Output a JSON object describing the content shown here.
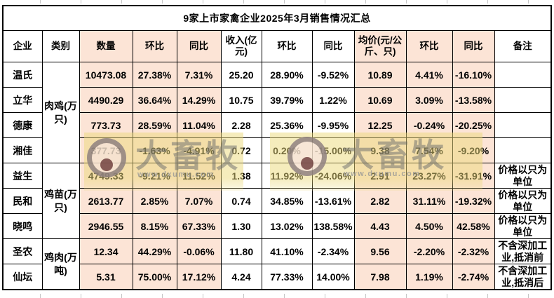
{
  "title": "9家上市家禽企业2025年3月销售情况汇总",
  "header": {
    "columns": [
      "企业",
      "类别",
      "数量",
      "环比",
      "同比",
      "收入(亿元)",
      "环比",
      "同比",
      "均价(元/公斤、只)",
      "环比",
      "同比",
      "备注"
    ]
  },
  "categories": [
    {
      "label": "肉鸡(万只)",
      "span": 4
    },
    {
      "label": "鸡苗(万只)",
      "span": 3
    },
    {
      "label": "鸡肉(万吨)",
      "span": 2
    }
  ],
  "rows": [
    {
      "company": "温氏",
      "qty": "10473.08",
      "qty_mom": "27.38%",
      "qty_yoy": "7.31%",
      "rev": "25.20",
      "rev_mom": "28.90%",
      "rev_yoy": "-9.52%",
      "price": "10.89",
      "price_mom": "4.41%",
      "price_yoy": "-16.10%",
      "note": ""
    },
    {
      "company": "立华",
      "qty": "4490.29",
      "qty_mom": "36.64%",
      "qty_yoy": "14.29%",
      "rev": "10.75",
      "rev_mom": "39.79%",
      "rev_yoy": "1.22%",
      "price": "10.69",
      "price_mom": "3.09%",
      "price_yoy": "-13.58%",
      "note": ""
    },
    {
      "company": "德康",
      "qty": "773.73",
      "qty_mom": "28.59%",
      "qty_yoy": "11.04%",
      "rev": "2.28",
      "rev_mom": "25.36%",
      "rev_yoy": "-9.95%",
      "price": "12.25",
      "price_mom": "-0.24%",
      "price_yoy": "-20.25%",
      "note": ""
    },
    {
      "company": "湘佳",
      "qty": "377.73",
      "qty_mom": "-1.63%",
      "qty_yoy": "-4.91%",
      "rev": "0.72",
      "rev_mom": "0.20%",
      "rev_yoy": "-15.00%",
      "price": "9.38",
      "price_mom": "7.54%",
      "price_yoy": "-9.20%",
      "note": ""
    },
    {
      "company": "益生",
      "qty": "4749.33",
      "qty_mom": "-9.21%",
      "qty_yoy": "11.52%",
      "rev": "1.38",
      "rev_mom": "11.92%",
      "rev_yoy": "-24.06%",
      "price": "2.91",
      "price_mom": "23.27%",
      "price_yoy": "-31.91%",
      "note": "价格以只为单位"
    },
    {
      "company": "民和",
      "qty": "2613.77",
      "qty_mom": "2.85%",
      "qty_yoy": "7.07%",
      "rev": "0.74",
      "rev_mom": "34.85%",
      "rev_yoy": "-13.61%",
      "price": "2.82",
      "price_mom": "31.11%",
      "price_yoy": "-19.32%",
      "note": "价格以只为单位"
    },
    {
      "company": "晓鸣",
      "qty": "2946.55",
      "qty_mom": "8.15%",
      "qty_yoy": "67.33%",
      "rev": "1.30",
      "rev_mom": "13.02%",
      "rev_yoy": "138.58%",
      "price": "4.43",
      "price_mom": "4.50%",
      "price_yoy": "42.58%",
      "note": "价格以只为单位"
    },
    {
      "company": "圣农",
      "qty": "12.34",
      "qty_mom": "44.29%",
      "qty_yoy": "-0.06%",
      "rev": "11.80",
      "rev_mom": "41.10%",
      "rev_yoy": "-2.34%",
      "price": "9.56",
      "price_mom": "-2.20%",
      "price_yoy": "-2.32%",
      "note": "不含深加工业,抵消前"
    },
    {
      "company": "仙坛",
      "qty": "5.31",
      "qty_mom": "75.00%",
      "qty_yoy": "17.12%",
      "rev": "4.24",
      "rev_mom": "77.33%",
      "rev_yoy": "14.00%",
      "price": "7.98",
      "price_mom": "1.19%",
      "price_yoy": "-2.74%",
      "note": "不含深加工业,抵消后"
    }
  ],
  "watermark": {
    "text": "大畜牧",
    "url": "www.dxumu.com"
  },
  "colors": {
    "positive": "#FF0000",
    "negative": "#00B050",
    "header_fill": "#FCE4D6",
    "border": "#000000"
  }
}
